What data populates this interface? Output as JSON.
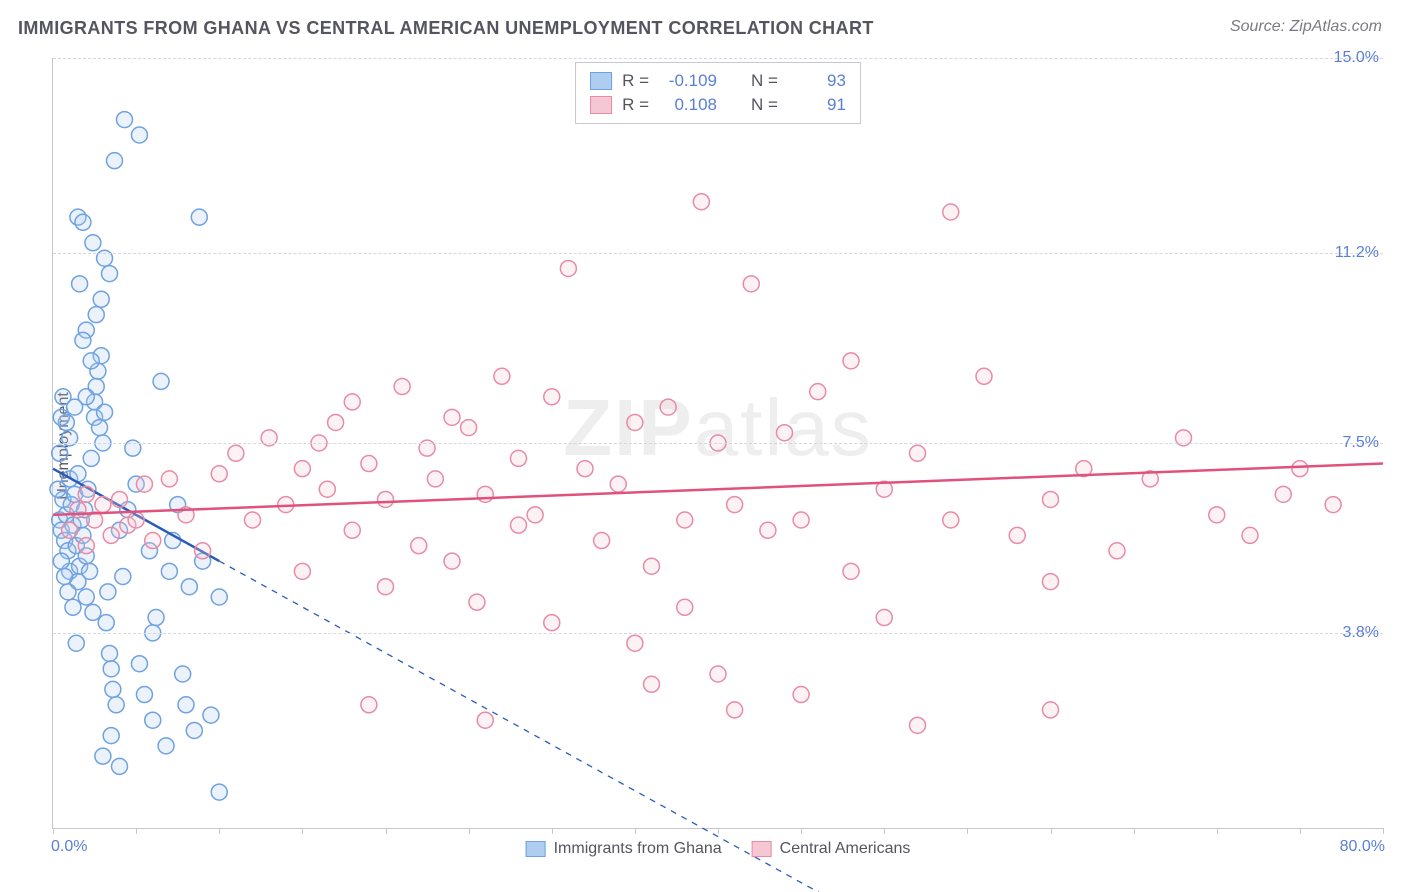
{
  "title": "IMMIGRANTS FROM GHANA VS CENTRAL AMERICAN UNEMPLOYMENT CORRELATION CHART",
  "source_label": "Source: ZipAtlas.com",
  "ylabel": "Unemployment",
  "watermark_bold": "ZIP",
  "watermark_rest": "atlas",
  "chart": {
    "type": "scatter",
    "background_color": "#ffffff",
    "grid_color": "#d6d6dc",
    "axis_color": "#c7c7cf",
    "tick_label_color": "#5a7fd6",
    "text_color": "#555560",
    "xlim": [
      0,
      80
    ],
    "ylim": [
      0,
      15
    ],
    "x_unit": "%",
    "y_unit": "%",
    "x_min_label": "0.0%",
    "x_max_label": "80.0%",
    "x_ticks": [
      0,
      5,
      10,
      15,
      20,
      25,
      30,
      35,
      40,
      45,
      50,
      55,
      60,
      65,
      70,
      75,
      80
    ],
    "y_ticks": [
      {
        "value": 3.8,
        "label": "3.8%"
      },
      {
        "value": 7.5,
        "label": "7.5%"
      },
      {
        "value": 11.2,
        "label": "11.2%"
      },
      {
        "value": 15.0,
        "label": "15.0%"
      }
    ],
    "title_fontsize": 18,
    "label_fontsize": 16,
    "tick_fontsize": 16,
    "marker_radius": 8,
    "marker_stroke_width": 1.5,
    "marker_fill_opacity": 0.25,
    "trendline_width": 2.5,
    "trendline_dash_width": 1.3,
    "series": [
      {
        "name": "Immigrants from Ghana",
        "label": "Immigrants from Ghana",
        "color_stroke": "#6ea2e0",
        "color_fill": "#aecdf0",
        "trend_color": "#2b5bb8",
        "R": -0.109,
        "N": 93,
        "trend_solid": {
          "x1": 0,
          "y1": 7.0,
          "x2": 10,
          "y2": 5.2
        },
        "trend_dash": {
          "x1": 10,
          "y1": 5.2,
          "x2": 48,
          "y2": -1.6
        },
        "points": [
          [
            0.4,
            6.0
          ],
          [
            0.5,
            5.8
          ],
          [
            0.6,
            6.4
          ],
          [
            0.7,
            5.6
          ],
          [
            0.8,
            6.1
          ],
          [
            0.9,
            5.4
          ],
          [
            1.0,
            6.8
          ],
          [
            1.0,
            5.0
          ],
          [
            1.1,
            6.3
          ],
          [
            1.2,
            5.9
          ],
          [
            1.3,
            6.5
          ],
          [
            1.4,
            5.5
          ],
          [
            1.5,
            4.8
          ],
          [
            1.5,
            6.9
          ],
          [
            1.6,
            5.1
          ],
          [
            1.7,
            6.0
          ],
          [
            1.8,
            5.7
          ],
          [
            1.9,
            6.2
          ],
          [
            2.0,
            5.3
          ],
          [
            2.0,
            4.5
          ],
          [
            2.1,
            6.6
          ],
          [
            2.2,
            5.0
          ],
          [
            2.3,
            7.2
          ],
          [
            2.4,
            4.2
          ],
          [
            2.5,
            8.0
          ],
          [
            2.5,
            8.3
          ],
          [
            2.6,
            8.6
          ],
          [
            2.7,
            8.9
          ],
          [
            2.8,
            7.8
          ],
          [
            2.9,
            9.2
          ],
          [
            3.0,
            7.5
          ],
          [
            3.1,
            8.1
          ],
          [
            3.2,
            4.0
          ],
          [
            3.3,
            4.6
          ],
          [
            3.4,
            3.4
          ],
          [
            3.5,
            3.1
          ],
          [
            3.6,
            2.7
          ],
          [
            3.8,
            2.4
          ],
          [
            4.0,
            5.8
          ],
          [
            4.2,
            4.9
          ],
          [
            4.5,
            6.2
          ],
          [
            4.8,
            7.4
          ],
          [
            5.0,
            6.7
          ],
          [
            5.2,
            3.2
          ],
          [
            5.5,
            2.6
          ],
          [
            5.8,
            5.4
          ],
          [
            6.0,
            3.8
          ],
          [
            6.0,
            2.1
          ],
          [
            6.2,
            4.1
          ],
          [
            6.5,
            8.7
          ],
          [
            6.8,
            1.6
          ],
          [
            7.0,
            5.0
          ],
          [
            7.2,
            5.6
          ],
          [
            7.5,
            6.3
          ],
          [
            7.8,
            3.0
          ],
          [
            8.0,
            2.4
          ],
          [
            8.2,
            4.7
          ],
          [
            8.5,
            1.9
          ],
          [
            9.0,
            5.2
          ],
          [
            9.5,
            2.2
          ],
          [
            10.0,
            4.5
          ],
          [
            10.0,
            0.7
          ],
          [
            2.9,
            10.3
          ],
          [
            3.1,
            11.1
          ],
          [
            3.4,
            10.8
          ],
          [
            2.6,
            10.0
          ],
          [
            2.0,
            9.7
          ],
          [
            2.3,
            9.1
          ],
          [
            1.8,
            9.5
          ],
          [
            3.7,
            13.0
          ],
          [
            1.5,
            11.9
          ],
          [
            1.8,
            11.8
          ],
          [
            2.4,
            11.4
          ],
          [
            1.6,
            10.6
          ],
          [
            4.3,
            13.8
          ],
          [
            5.2,
            13.5
          ],
          [
            2.0,
            8.4
          ],
          [
            1.3,
            8.2
          ],
          [
            1.0,
            7.6
          ],
          [
            0.8,
            7.9
          ],
          [
            0.6,
            8.4
          ],
          [
            0.5,
            8.0
          ],
          [
            0.4,
            7.3
          ],
          [
            0.3,
            6.6
          ],
          [
            1.2,
            4.3
          ],
          [
            1.4,
            3.6
          ],
          [
            0.9,
            4.6
          ],
          [
            0.7,
            4.9
          ],
          [
            0.5,
            5.2
          ],
          [
            8.8,
            11.9
          ],
          [
            3.0,
            1.4
          ],
          [
            3.5,
            1.8
          ],
          [
            4.0,
            1.2
          ]
        ]
      },
      {
        "name": "Central Americans",
        "label": "Central Americans",
        "color_stroke": "#e88ba5",
        "color_fill": "#f5c6d3",
        "trend_color": "#e0517c",
        "R": 0.108,
        "N": 91,
        "trend_solid": {
          "x1": 0,
          "y1": 6.1,
          "x2": 80,
          "y2": 7.1
        },
        "trend_dash": null,
        "points": [
          [
            1.0,
            5.8
          ],
          [
            1.5,
            6.2
          ],
          [
            2.0,
            5.5
          ],
          [
            2.0,
            6.5
          ],
          [
            2.5,
            6.0
          ],
          [
            3.0,
            6.3
          ],
          [
            3.5,
            5.7
          ],
          [
            4.0,
            6.4
          ],
          [
            4.5,
            5.9
          ],
          [
            5.0,
            6.0
          ],
          [
            5.5,
            6.7
          ],
          [
            6.0,
            5.6
          ],
          [
            7.0,
            6.8
          ],
          [
            8.0,
            6.1
          ],
          [
            9.0,
            5.4
          ],
          [
            10.0,
            6.9
          ],
          [
            11.0,
            7.3
          ],
          [
            12.0,
            6.0
          ],
          [
            13.0,
            7.6
          ],
          [
            14.0,
            6.3
          ],
          [
            15.0,
            7.0
          ],
          [
            15.0,
            5.0
          ],
          [
            16.0,
            7.5
          ],
          [
            16.5,
            6.6
          ],
          [
            17.0,
            7.9
          ],
          [
            18.0,
            5.8
          ],
          [
            18.0,
            8.3
          ],
          [
            19.0,
            7.1
          ],
          [
            20.0,
            6.4
          ],
          [
            20.0,
            4.7
          ],
          [
            21.0,
            8.6
          ],
          [
            22.0,
            5.5
          ],
          [
            22.5,
            7.4
          ],
          [
            23.0,
            6.8
          ],
          [
            24.0,
            8.0
          ],
          [
            24.0,
            5.2
          ],
          [
            25.0,
            7.8
          ],
          [
            25.5,
            4.4
          ],
          [
            26.0,
            6.5
          ],
          [
            27.0,
            8.8
          ],
          [
            28.0,
            5.9
          ],
          [
            28.0,
            7.2
          ],
          [
            29.0,
            6.1
          ],
          [
            30.0,
            8.4
          ],
          [
            30.0,
            4.0
          ],
          [
            31.0,
            10.9
          ],
          [
            32.0,
            7.0
          ],
          [
            33.0,
            5.6
          ],
          [
            34.0,
            6.7
          ],
          [
            35.0,
            7.9
          ],
          [
            35.0,
            3.6
          ],
          [
            36.0,
            5.1
          ],
          [
            37.0,
            8.2
          ],
          [
            38.0,
            6.0
          ],
          [
            38.0,
            4.3
          ],
          [
            39.0,
            12.2
          ],
          [
            40.0,
            7.5
          ],
          [
            40.0,
            3.0
          ],
          [
            41.0,
            6.3
          ],
          [
            42.0,
            10.6
          ],
          [
            43.0,
            5.8
          ],
          [
            44.0,
            7.7
          ],
          [
            45.0,
            6.0
          ],
          [
            45.0,
            2.6
          ],
          [
            46.0,
            8.5
          ],
          [
            48.0,
            5.0
          ],
          [
            48.0,
            9.1
          ],
          [
            50.0,
            6.6
          ],
          [
            50.0,
            4.1
          ],
          [
            52.0,
            7.3
          ],
          [
            54.0,
            6.0
          ],
          [
            54.0,
            12.0
          ],
          [
            56.0,
            8.8
          ],
          [
            58.0,
            5.7
          ],
          [
            60.0,
            6.4
          ],
          [
            60.0,
            2.3
          ],
          [
            62.0,
            7.0
          ],
          [
            64.0,
            5.4
          ],
          [
            66.0,
            6.8
          ],
          [
            68.0,
            7.6
          ],
          [
            70.0,
            6.1
          ],
          [
            72.0,
            5.7
          ],
          [
            74.0,
            6.5
          ],
          [
            75.0,
            7.0
          ],
          [
            77.0,
            6.3
          ],
          [
            41.0,
            2.3
          ],
          [
            19.0,
            2.4
          ],
          [
            26.0,
            2.1
          ],
          [
            52.0,
            2.0
          ],
          [
            36.0,
            2.8
          ],
          [
            60.0,
            4.8
          ]
        ]
      }
    ],
    "legend_bottom": [
      {
        "series": 0
      },
      {
        "series": 1
      }
    ]
  }
}
